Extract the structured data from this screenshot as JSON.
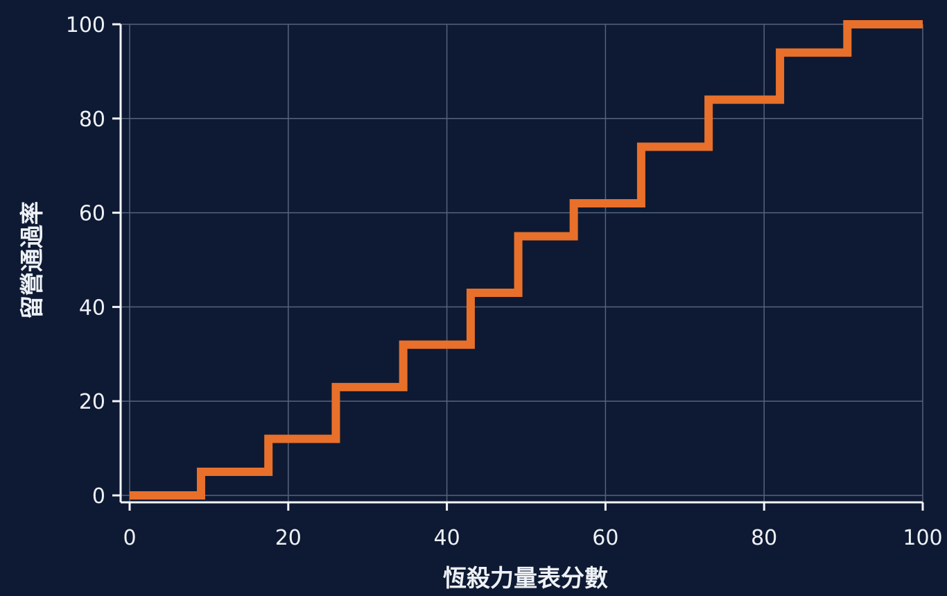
{
  "chart_data": {
    "type": "line",
    "step": true,
    "title": "",
    "xlabel": "恆殺力量表分數",
    "ylabel": "留營通過率",
    "xlim": [
      0,
      100
    ],
    "ylim": [
      0,
      100
    ],
    "xticks": [
      "0",
      "20",
      "40",
      "60",
      "80",
      "100"
    ],
    "yticks": [
      "0",
      "20",
      "40",
      "60",
      "80",
      "100"
    ],
    "grid": true,
    "colors": {
      "background": "#0e1a33",
      "line": "#e8702a",
      "grid": "#56637c",
      "axis": "#f2f4f8",
      "text": "#eef1f6"
    },
    "series": [
      {
        "x": [
          0,
          9,
          9,
          17.5,
          17.5,
          26,
          26,
          34.5,
          34.5,
          43,
          43,
          49,
          49,
          56,
          56,
          64.5,
          64.5,
          73,
          73,
          82,
          82,
          90.5,
          90.5,
          100
        ],
        "y": [
          0,
          0,
          5,
          5,
          12,
          12,
          23,
          23,
          32,
          32,
          43,
          43,
          55,
          55,
          62,
          62,
          74,
          74,
          84,
          84,
          94,
          94,
          100,
          100
        ]
      }
    ]
  }
}
